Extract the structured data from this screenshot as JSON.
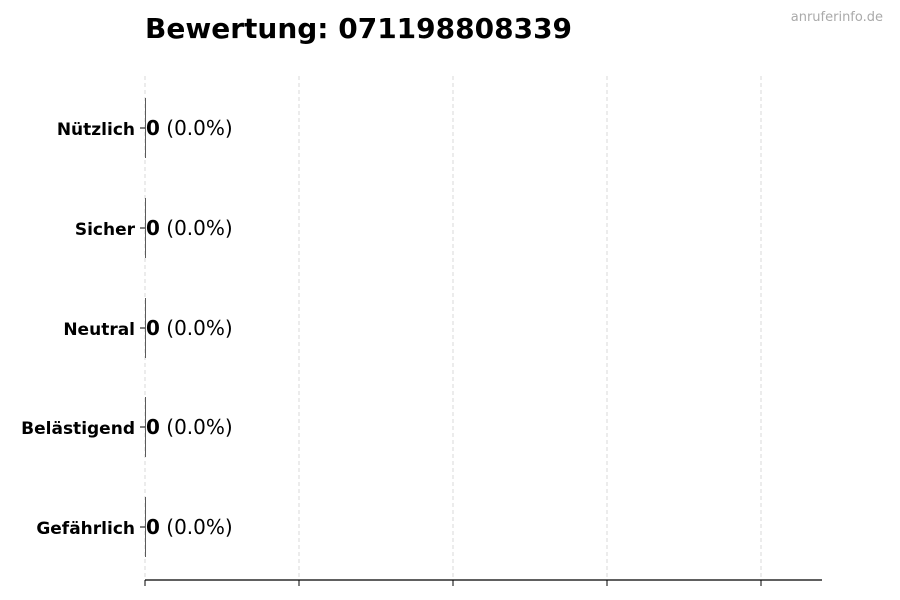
{
  "watermark": "anruferinfo.de",
  "chart_data": {
    "type": "bar",
    "orientation": "horizontal",
    "title": "Bewertung: 071198808339",
    "categories": [
      "Nützlich",
      "Sicher",
      "Neutral",
      "Belästigend",
      "Gefährlich"
    ],
    "values": [
      0,
      0,
      0,
      0,
      0
    ],
    "data_labels": [
      {
        "count": "0",
        "percent": "(0.0%)"
      },
      {
        "count": "0",
        "percent": "(0.0%)"
      },
      {
        "count": "0",
        "percent": "(0.0%)"
      },
      {
        "count": "0",
        "percent": "(0.0%)"
      },
      {
        "count": "0",
        "percent": "(0.0%)"
      }
    ],
    "xlabel": "",
    "ylabel": "",
    "x_tick_labels_shown": false,
    "grid": "vertical dashed",
    "colors": {
      "grid": "#d9d9d9",
      "axis": "#000000",
      "bar_edge": "#333333"
    }
  }
}
